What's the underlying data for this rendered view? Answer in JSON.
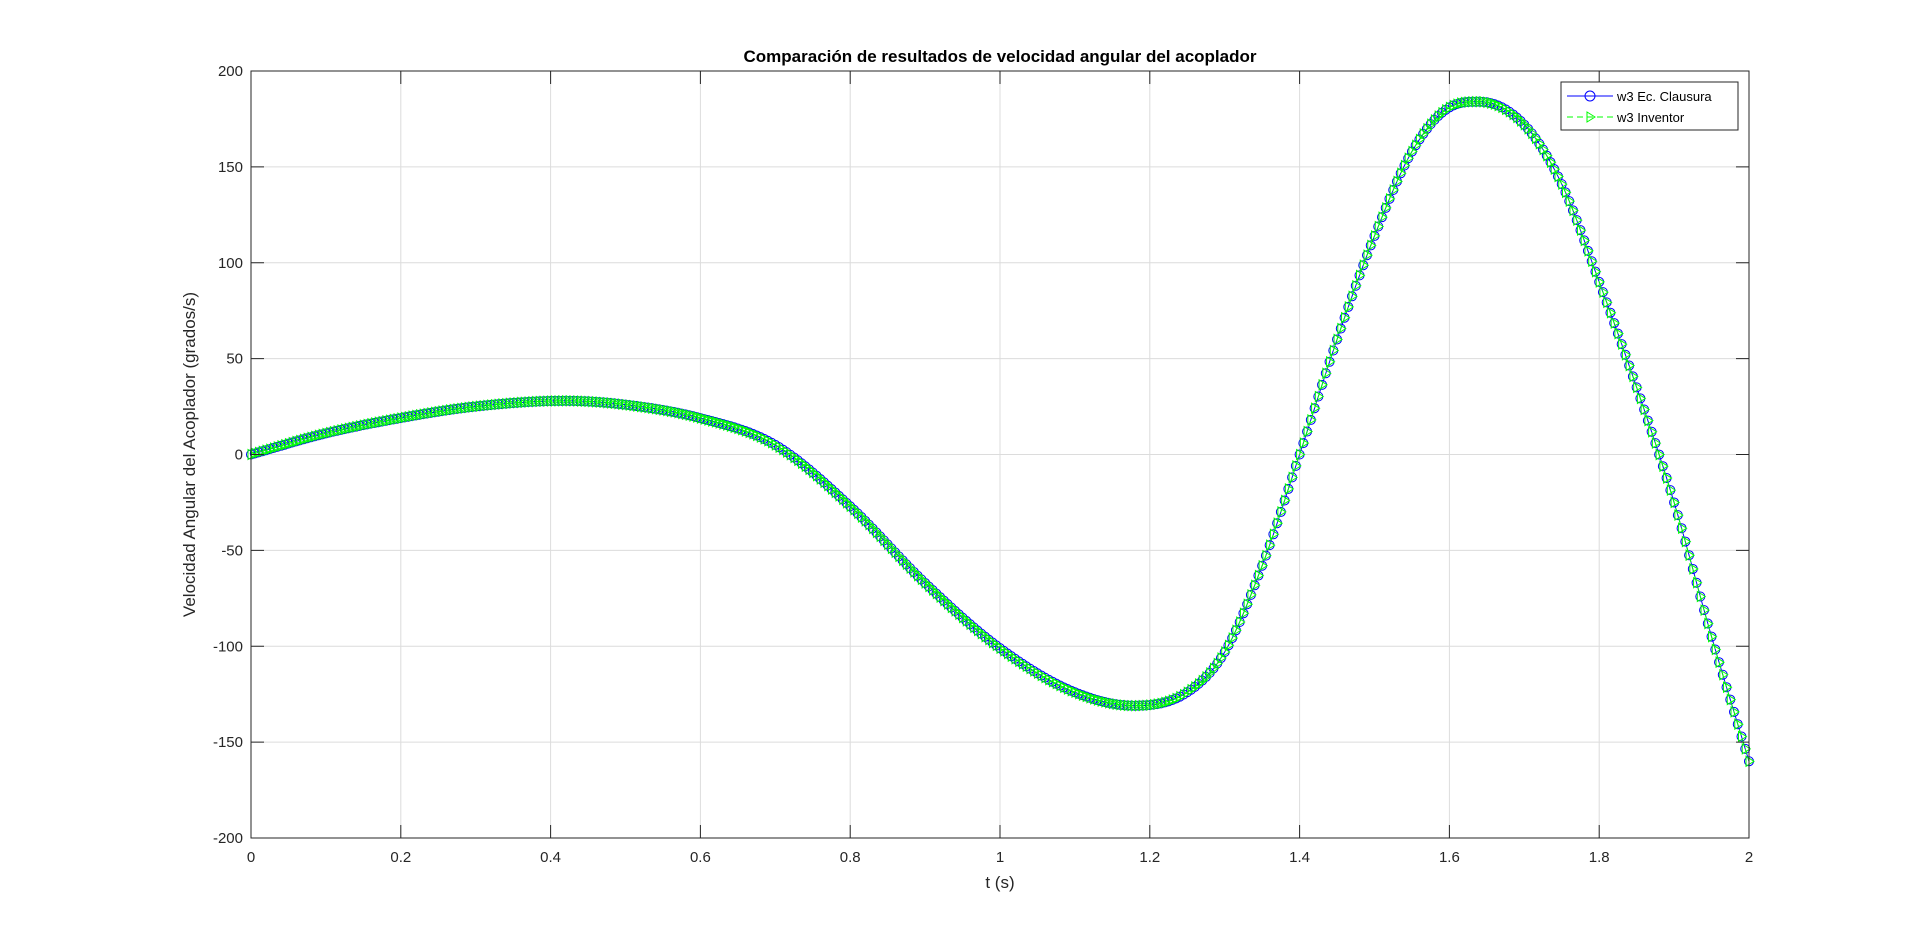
{
  "chart_data": {
    "type": "line",
    "title": "Comparación de resultados de velocidad angular del acoplador",
    "xlabel": "t (s)",
    "ylabel": "Velocidad Angular del Acoplador (grados/s)",
    "xlim": [
      0,
      2
    ],
    "ylim": [
      -200,
      200
    ],
    "x_ticks": [
      0,
      0.2,
      0.4,
      0.6,
      0.8,
      1,
      1.2,
      1.4,
      1.6,
      1.8,
      2
    ],
    "x_tick_labels": [
      "0",
      "0.2",
      "0.4",
      "0.6",
      "0.8",
      "1",
      "1.2",
      "1.4",
      "1.6",
      "1.8",
      "2"
    ],
    "y_ticks": [
      -200,
      -150,
      -100,
      -50,
      0,
      50,
      100,
      150,
      200
    ],
    "y_tick_labels": [
      "-200",
      "-150",
      "-100",
      "-50",
      "0",
      "50",
      "100",
      "150",
      "200"
    ],
    "grid": true,
    "legend_position": "top-right",
    "x": [
      0,
      0.1,
      0.2,
      0.3,
      0.42,
      0.5,
      0.6,
      0.7,
      0.8,
      0.9,
      1.0,
      1.1,
      1.18,
      1.25,
      1.3,
      1.35,
      1.4,
      1.45,
      1.5,
      1.55,
      1.6,
      1.64,
      1.7,
      1.75,
      1.8,
      1.85,
      1.9,
      1.95,
      2.0
    ],
    "series": [
      {
        "name": "w3 Ec. Clausura",
        "color": "#0000ff",
        "marker": "circle",
        "line_style": "solid",
        "values": [
          0,
          11,
          19,
          25,
          28,
          26,
          19,
          5,
          -27,
          -67,
          -101,
          -124,
          -131,
          -124,
          -103,
          -58,
          0,
          60,
          114,
          158,
          181,
          184,
          172,
          141,
          90,
          35,
          -25,
          -95,
          -160
        ]
      },
      {
        "name": "w3 Inventor",
        "color": "#00ff00",
        "marker": "triangle-right",
        "line_style": "dashed",
        "values": [
          0,
          11,
          19,
          25,
          28,
          26,
          19,
          5,
          -27,
          -67,
          -101,
          -124,
          -131,
          -124,
          -103,
          -58,
          0,
          60,
          114,
          158,
          181,
          184,
          172,
          141,
          90,
          35,
          -25,
          -95,
          -160
        ]
      }
    ]
  }
}
